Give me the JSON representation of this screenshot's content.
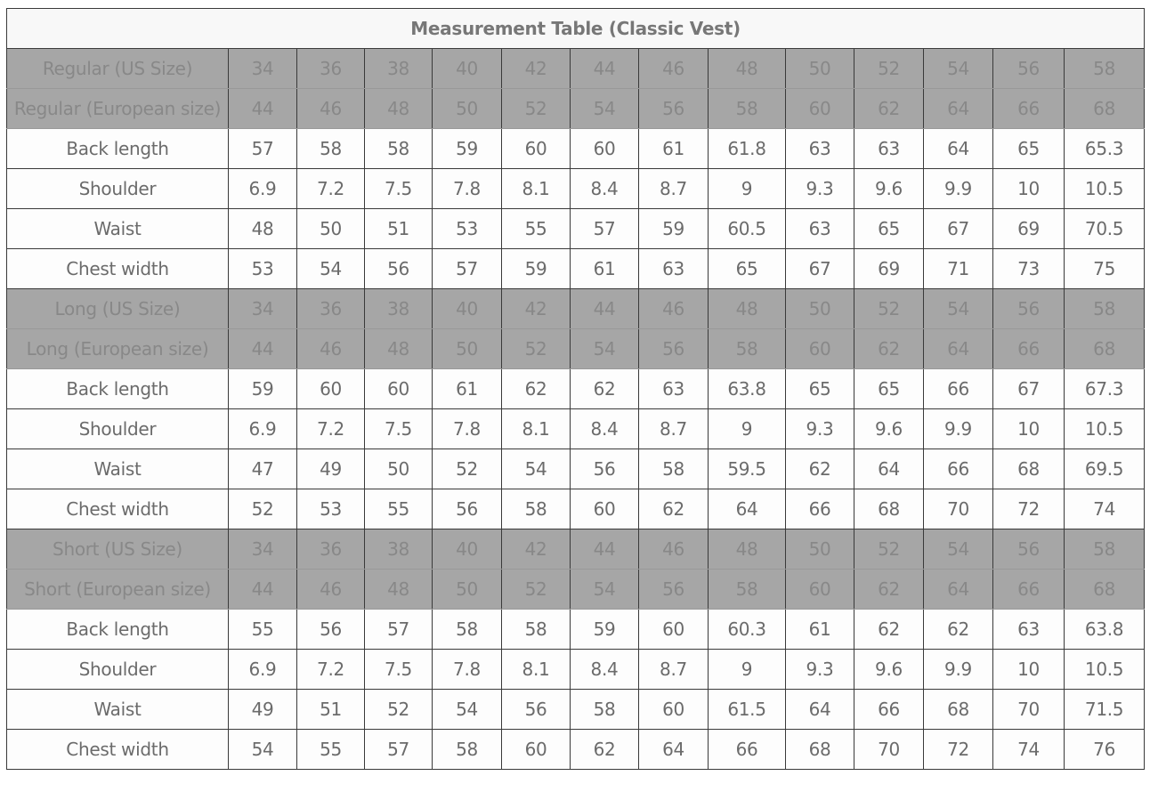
{
  "title": "Measurement Table (Classic Vest)",
  "colors": {
    "header_bg": "#a6a6a6",
    "header_text": "#888888",
    "body_text": "#6b6b6b",
    "border": "#3a3a3a"
  },
  "rows": [
    {
      "type": "header",
      "label": "Regular (US Size)",
      "values": [
        "34",
        "36",
        "38",
        "40",
        "42",
        "44",
        "46",
        "48",
        "50",
        "52",
        "54",
        "56",
        "58"
      ]
    },
    {
      "type": "header",
      "label": "Regular (European size)",
      "values": [
        "44",
        "46",
        "48",
        "50",
        "52",
        "54",
        "56",
        "58",
        "60",
        "62",
        "64",
        "66",
        "68"
      ]
    },
    {
      "type": "value",
      "label": "Back length",
      "values": [
        "57",
        "58",
        "58",
        "59",
        "60",
        "60",
        "61",
        "61.8",
        "63",
        "63",
        "64",
        "65",
        "65.3"
      ]
    },
    {
      "type": "value",
      "label": "Shoulder",
      "values": [
        "6.9",
        "7.2",
        "7.5",
        "7.8",
        "8.1",
        "8.4",
        "8.7",
        "9",
        "9.3",
        "9.6",
        "9.9",
        "10",
        "10.5"
      ]
    },
    {
      "type": "value",
      "label": "Waist",
      "values": [
        "48",
        "50",
        "51",
        "53",
        "55",
        "57",
        "59",
        "60.5",
        "63",
        "65",
        "67",
        "69",
        "70.5"
      ]
    },
    {
      "type": "value",
      "label": "Chest width",
      "values": [
        "53",
        "54",
        "56",
        "57",
        "59",
        "61",
        "63",
        "65",
        "67",
        "69",
        "71",
        "73",
        "75"
      ]
    },
    {
      "type": "header",
      "label": "Long (US Size)",
      "values": [
        "34",
        "36",
        "38",
        "40",
        "42",
        "44",
        "46",
        "48",
        "50",
        "52",
        "54",
        "56",
        "58"
      ]
    },
    {
      "type": "header",
      "label": "Long (European size)",
      "values": [
        "44",
        "46",
        "48",
        "50",
        "52",
        "54",
        "56",
        "58",
        "60",
        "62",
        "64",
        "66",
        "68"
      ]
    },
    {
      "type": "value",
      "label": "Back length",
      "values": [
        "59",
        "60",
        "60",
        "61",
        "62",
        "62",
        "63",
        "63.8",
        "65",
        "65",
        "66",
        "67",
        "67.3"
      ]
    },
    {
      "type": "value",
      "label": "Shoulder",
      "values": [
        "6.9",
        "7.2",
        "7.5",
        "7.8",
        "8.1",
        "8.4",
        "8.7",
        "9",
        "9.3",
        "9.6",
        "9.9",
        "10",
        "10.5"
      ]
    },
    {
      "type": "value",
      "label": "Waist",
      "values": [
        "47",
        "49",
        "50",
        "52",
        "54",
        "56",
        "58",
        "59.5",
        "62",
        "64",
        "66",
        "68",
        "69.5"
      ]
    },
    {
      "type": "value",
      "label": "Chest width",
      "values": [
        "52",
        "53",
        "55",
        "56",
        "58",
        "60",
        "62",
        "64",
        "66",
        "68",
        "70",
        "72",
        "74"
      ]
    },
    {
      "type": "header",
      "label": "Short (US Size)",
      "values": [
        "34",
        "36",
        "38",
        "40",
        "42",
        "44",
        "46",
        "48",
        "50",
        "52",
        "54",
        "56",
        "58"
      ]
    },
    {
      "type": "header",
      "label": "Short (European size)",
      "values": [
        "44",
        "46",
        "48",
        "50",
        "52",
        "54",
        "56",
        "58",
        "60",
        "62",
        "64",
        "66",
        "68"
      ]
    },
    {
      "type": "value",
      "label": "Back length",
      "values": [
        "55",
        "56",
        "57",
        "58",
        "58",
        "59",
        "60",
        "60.3",
        "61",
        "62",
        "62",
        "63",
        "63.8"
      ]
    },
    {
      "type": "value",
      "label": "Shoulder",
      "values": [
        "6.9",
        "7.2",
        "7.5",
        "7.8",
        "8.1",
        "8.4",
        "8.7",
        "9",
        "9.3",
        "9.6",
        "9.9",
        "10",
        "10.5"
      ]
    },
    {
      "type": "value",
      "label": "Waist",
      "values": [
        "49",
        "51",
        "52",
        "54",
        "56",
        "58",
        "60",
        "61.5",
        "64",
        "66",
        "68",
        "70",
        "71.5"
      ]
    },
    {
      "type": "value",
      "label": "Chest width",
      "values": [
        "54",
        "55",
        "57",
        "58",
        "60",
        "62",
        "64",
        "66",
        "68",
        "70",
        "72",
        "74",
        "76"
      ]
    }
  ]
}
